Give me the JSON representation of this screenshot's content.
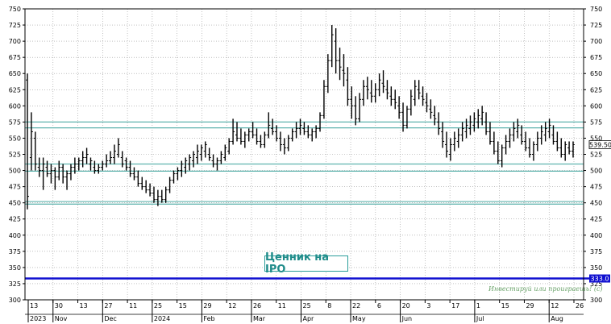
{
  "chart_data": {
    "type": "ohlc",
    "y_ticks": [
      300,
      325,
      350,
      375,
      400,
      425,
      450,
      475,
      500,
      525,
      550,
      575,
      600,
      625,
      650,
      675,
      700,
      725,
      750
    ],
    "ylim": [
      300,
      750
    ],
    "x_tick_labels": [
      "13",
      "30",
      "13",
      "27",
      "11",
      "25",
      "15",
      "29",
      "12",
      "26",
      "11",
      "25",
      "8",
      "22",
      "6",
      "20",
      "3",
      "17",
      "1",
      "15",
      "29",
      "12",
      "26"
    ],
    "x_group_labels": [
      "2023",
      "Nov",
      "Dec",
      "2024",
      "Feb",
      "Mar",
      "Apr",
      "May",
      "Jun",
      "Jul",
      "Aug"
    ],
    "horizontal_levels": [
      {
        "value": 575,
        "color": "#5fb3ae"
      },
      {
        "value": 566,
        "color": "#5fb3ae"
      },
      {
        "value": 510,
        "color": "#5fb3ae"
      },
      {
        "value": 499,
        "color": "#5fb3ae"
      },
      {
        "value": 452,
        "color": "#5fb3ae"
      },
      {
        "value": 448,
        "color": "#5fb3ae"
      }
    ],
    "ipo_line": {
      "value": 333,
      "color": "#1010d0",
      "label": "333.0"
    },
    "last_price_label": "539.50",
    "annotation": "Ценник на IPO",
    "watermark": "Инвестируй или проиграешь! (с)",
    "bars": [
      [
        640,
        650,
        440,
        460
      ],
      [
        520,
        590,
        500,
        560
      ],
      [
        550,
        560,
        500,
        510
      ],
      [
        505,
        520,
        490,
        500
      ],
      [
        500,
        520,
        470,
        510
      ],
      [
        505,
        515,
        490,
        495
      ],
      [
        495,
        510,
        480,
        500
      ],
      [
        500,
        505,
        470,
        490
      ],
      [
        490,
        515,
        485,
        505
      ],
      [
        505,
        510,
        480,
        490
      ],
      [
        490,
        500,
        470,
        495
      ],
      [
        495,
        510,
        485,
        505
      ],
      [
        505,
        520,
        495,
        510
      ],
      [
        510,
        520,
        500,
        515
      ],
      [
        515,
        530,
        505,
        520
      ],
      [
        520,
        535,
        510,
        525
      ],
      [
        510,
        520,
        500,
        515
      ],
      [
        505,
        515,
        495,
        500
      ],
      [
        500,
        510,
        495,
        505
      ],
      [
        505,
        515,
        500,
        510
      ],
      [
        510,
        525,
        505,
        515
      ],
      [
        515,
        530,
        510,
        520
      ],
      [
        520,
        540,
        510,
        530
      ],
      [
        525,
        550,
        520,
        540
      ],
      [
        520,
        530,
        505,
        510
      ],
      [
        515,
        520,
        500,
        505
      ],
      [
        505,
        515,
        490,
        495
      ],
      [
        495,
        505,
        485,
        490
      ],
      [
        490,
        500,
        475,
        480
      ],
      [
        480,
        490,
        470,
        475
      ],
      [
        475,
        485,
        465,
        470
      ],
      [
        470,
        480,
        460,
        465
      ],
      [
        465,
        475,
        450,
        455
      ],
      [
        455,
        470,
        445,
        460
      ],
      [
        460,
        470,
        450,
        455
      ],
      [
        455,
        475,
        450,
        470
      ],
      [
        470,
        490,
        465,
        485
      ],
      [
        485,
        500,
        480,
        495
      ],
      [
        495,
        505,
        485,
        500
      ],
      [
        500,
        515,
        490,
        510
      ],
      [
        505,
        520,
        495,
        515
      ],
      [
        510,
        525,
        500,
        520
      ],
      [
        515,
        530,
        505,
        525
      ],
      [
        520,
        540,
        510,
        530
      ],
      [
        525,
        540,
        515,
        535
      ],
      [
        530,
        545,
        520,
        540
      ],
      [
        525,
        535,
        515,
        520
      ],
      [
        515,
        525,
        505,
        510
      ],
      [
        510,
        520,
        500,
        515
      ],
      [
        515,
        530,
        510,
        525
      ],
      [
        520,
        540,
        515,
        535
      ],
      [
        530,
        550,
        525,
        545
      ],
      [
        545,
        580,
        540,
        560
      ],
      [
        555,
        575,
        545,
        550
      ],
      [
        550,
        565,
        540,
        545
      ],
      [
        545,
        560,
        535,
        555
      ],
      [
        555,
        565,
        545,
        560
      ],
      [
        560,
        575,
        550,
        555
      ],
      [
        555,
        565,
        540,
        545
      ],
      [
        545,
        555,
        535,
        540
      ],
      [
        540,
        560,
        535,
        555
      ],
      [
        555,
        590,
        550,
        570
      ],
      [
        565,
        580,
        555,
        560
      ],
      [
        560,
        570,
        545,
        550
      ],
      [
        550,
        560,
        530,
        540
      ],
      [
        540,
        550,
        525,
        535
      ],
      [
        535,
        555,
        530,
        550
      ],
      [
        550,
        565,
        545,
        560
      ],
      [
        560,
        575,
        550,
        565
      ],
      [
        565,
        580,
        555,
        570
      ],
      [
        565,
        575,
        555,
        560
      ],
      [
        560,
        570,
        550,
        555
      ],
      [
        555,
        565,
        545,
        560
      ],
      [
        560,
        570,
        550,
        565
      ],
      [
        565,
        590,
        560,
        585
      ],
      [
        585,
        640,
        580,
        630
      ],
      [
        630,
        680,
        620,
        670
      ],
      [
        670,
        725,
        660,
        710
      ],
      [
        700,
        720,
        650,
        670
      ],
      [
        670,
        690,
        640,
        660
      ],
      [
        655,
        680,
        630,
        650
      ],
      [
        640,
        660,
        600,
        610
      ],
      [
        610,
        630,
        580,
        600
      ],
      [
        600,
        615,
        570,
        580
      ],
      [
        580,
        620,
        575,
        610
      ],
      [
        610,
        640,
        600,
        630
      ],
      [
        630,
        645,
        610,
        625
      ],
      [
        620,
        640,
        605,
        615
      ],
      [
        615,
        635,
        605,
        625
      ],
      [
        625,
        650,
        615,
        640
      ],
      [
        635,
        655,
        620,
        630
      ],
      [
        625,
        640,
        610,
        620
      ],
      [
        615,
        630,
        600,
        610
      ],
      [
        610,
        625,
        595,
        605
      ],
      [
        600,
        615,
        580,
        590
      ],
      [
        590,
        605,
        560,
        570
      ],
      [
        570,
        600,
        565,
        595
      ],
      [
        595,
        625,
        585,
        615
      ],
      [
        610,
        640,
        600,
        630
      ],
      [
        625,
        640,
        610,
        620
      ],
      [
        615,
        630,
        600,
        610
      ],
      [
        605,
        620,
        590,
        600
      ],
      [
        595,
        610,
        580,
        590
      ],
      [
        585,
        600,
        570,
        580
      ],
      [
        575,
        590,
        555,
        565
      ],
      [
        560,
        575,
        535,
        545
      ],
      [
        540,
        560,
        520,
        530
      ],
      [
        525,
        550,
        515,
        540
      ],
      [
        540,
        560,
        530,
        550
      ],
      [
        545,
        565,
        535,
        555
      ],
      [
        555,
        575,
        545,
        565
      ],
      [
        560,
        580,
        550,
        570
      ],
      [
        565,
        585,
        555,
        575
      ],
      [
        570,
        590,
        560,
        580
      ],
      [
        575,
        595,
        565,
        585
      ],
      [
        580,
        600,
        570,
        590
      ],
      [
        575,
        590,
        555,
        560
      ],
      [
        560,
        575,
        540,
        545
      ],
      [
        545,
        560,
        525,
        530
      ],
      [
        530,
        545,
        510,
        515
      ],
      [
        515,
        540,
        505,
        535
      ],
      [
        535,
        555,
        525,
        545
      ],
      [
        545,
        565,
        535,
        555
      ],
      [
        555,
        575,
        545,
        565
      ],
      [
        560,
        580,
        550,
        570
      ],
      [
        555,
        570,
        540,
        545
      ],
      [
        545,
        560,
        530,
        535
      ],
      [
        535,
        550,
        520,
        525
      ],
      [
        525,
        545,
        515,
        540
      ],
      [
        540,
        560,
        530,
        550
      ],
      [
        550,
        570,
        540,
        560
      ],
      [
        555,
        575,
        545,
        565
      ],
      [
        560,
        580,
        550,
        570
      ],
      [
        555,
        570,
        540,
        545
      ],
      [
        545,
        560,
        530,
        535
      ],
      [
        535,
        550,
        520,
        525
      ],
      [
        525,
        545,
        515,
        540
      ],
      [
        535,
        545,
        525,
        530
      ],
      [
        530,
        545,
        520,
        540
      ]
    ]
  }
}
